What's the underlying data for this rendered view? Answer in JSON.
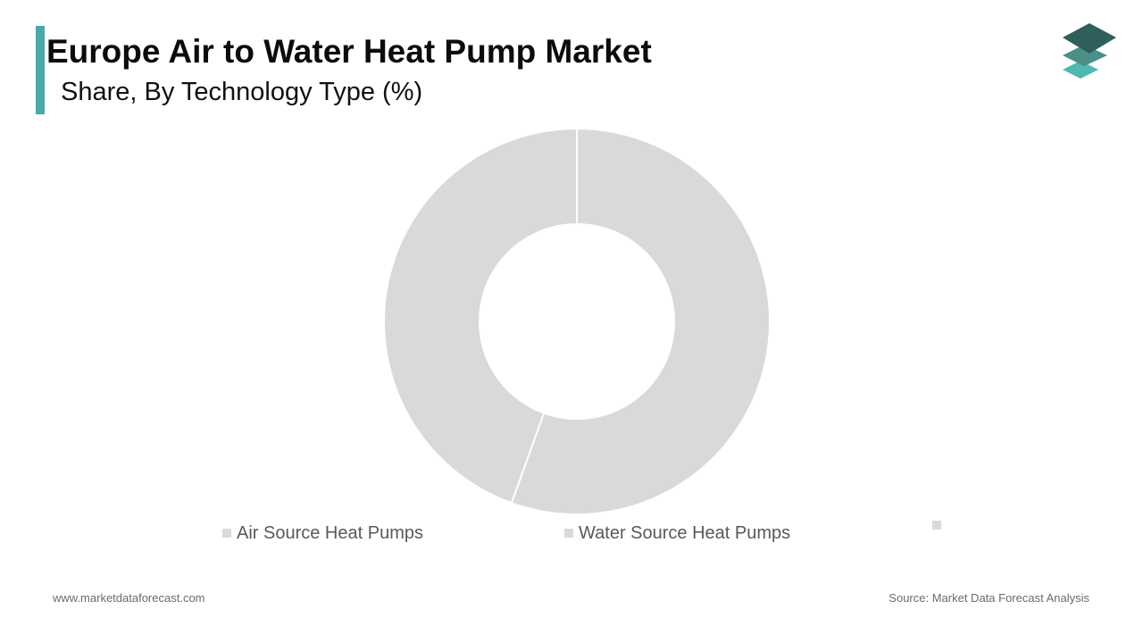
{
  "header": {
    "title": "Europe Air to Water Heat Pump Market",
    "subtitle": "Share, By Technology Type (%)"
  },
  "colors": {
    "accent": "#4aa8a5",
    "segment": "#d9d9d9",
    "logo_top": "#2f5f5a",
    "logo_mid": "#4a8f88",
    "logo_bottom": "#4fb8b0"
  },
  "chart_data": {
    "type": "pie",
    "subtype": "donut",
    "title": "Europe Air to Water Heat Pump Market",
    "subtitle": "Share, By Technology Type (%)",
    "categories": [
      "Air Source Heat Pumps",
      "Water Source Heat Pumps",
      ""
    ],
    "values": [
      55.5,
      44.5,
      0
    ],
    "legend_position": "bottom"
  },
  "footer": {
    "website": "www.marketdataforecast.com",
    "source": "Source: Market Data Forecast Analysis"
  }
}
